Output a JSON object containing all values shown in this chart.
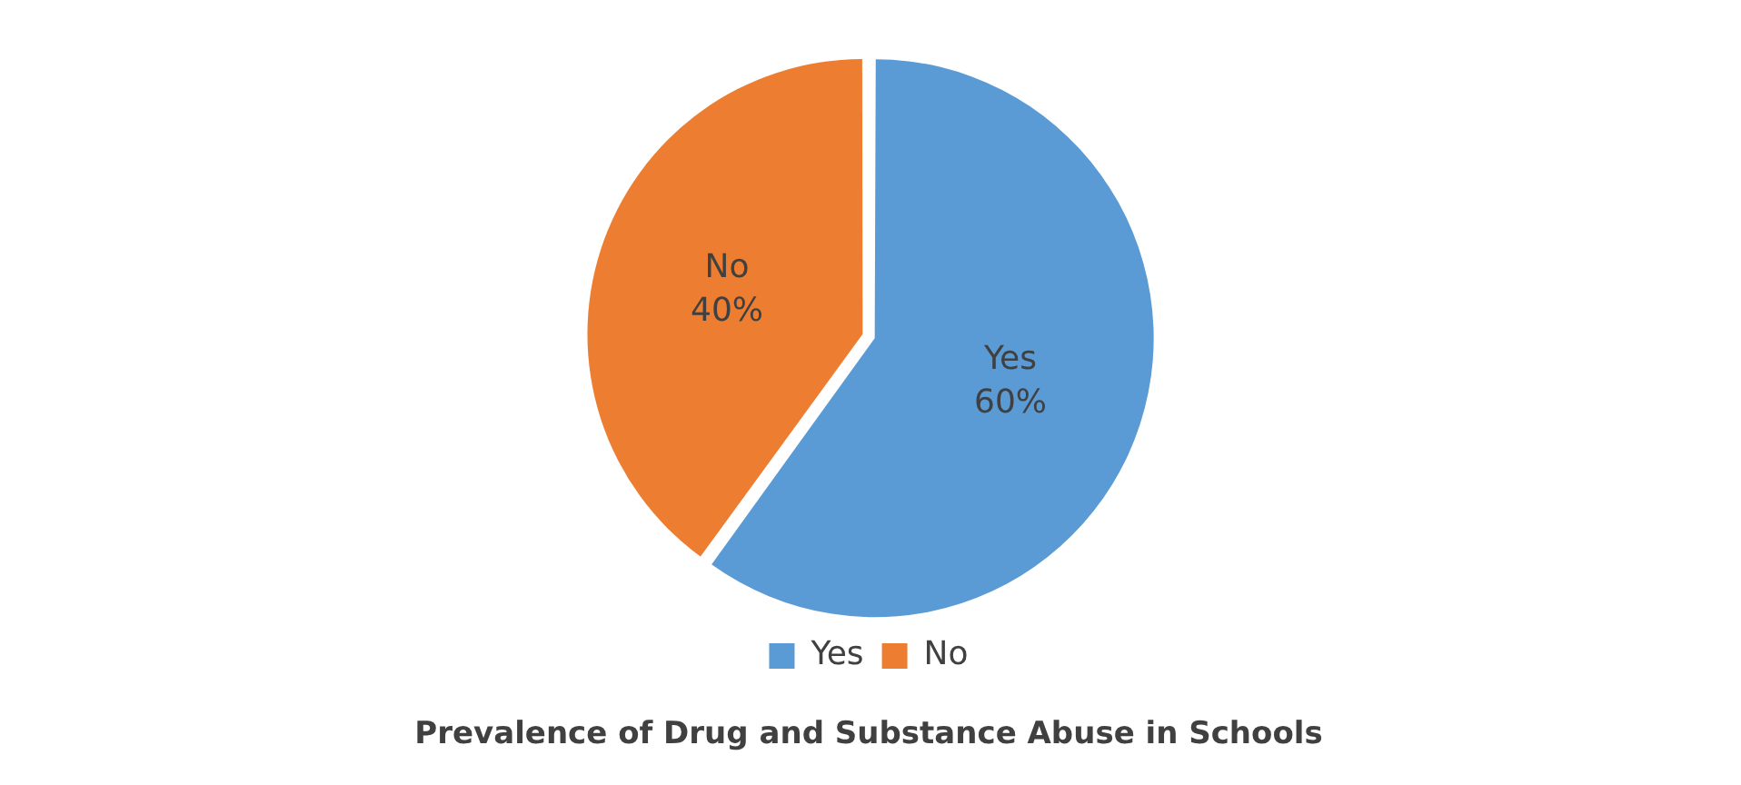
{
  "chart_data": {
    "type": "pie",
    "title": "Prevalence of Drug and Substance Abuse in Schools",
    "categories": [
      "Yes",
      "No"
    ],
    "values": [
      60,
      40
    ],
    "colors": [
      "#5b9bd5",
      "#ed7d31"
    ],
    "value_labels": [
      "60%",
      "40%"
    ],
    "legend": "bottom"
  }
}
